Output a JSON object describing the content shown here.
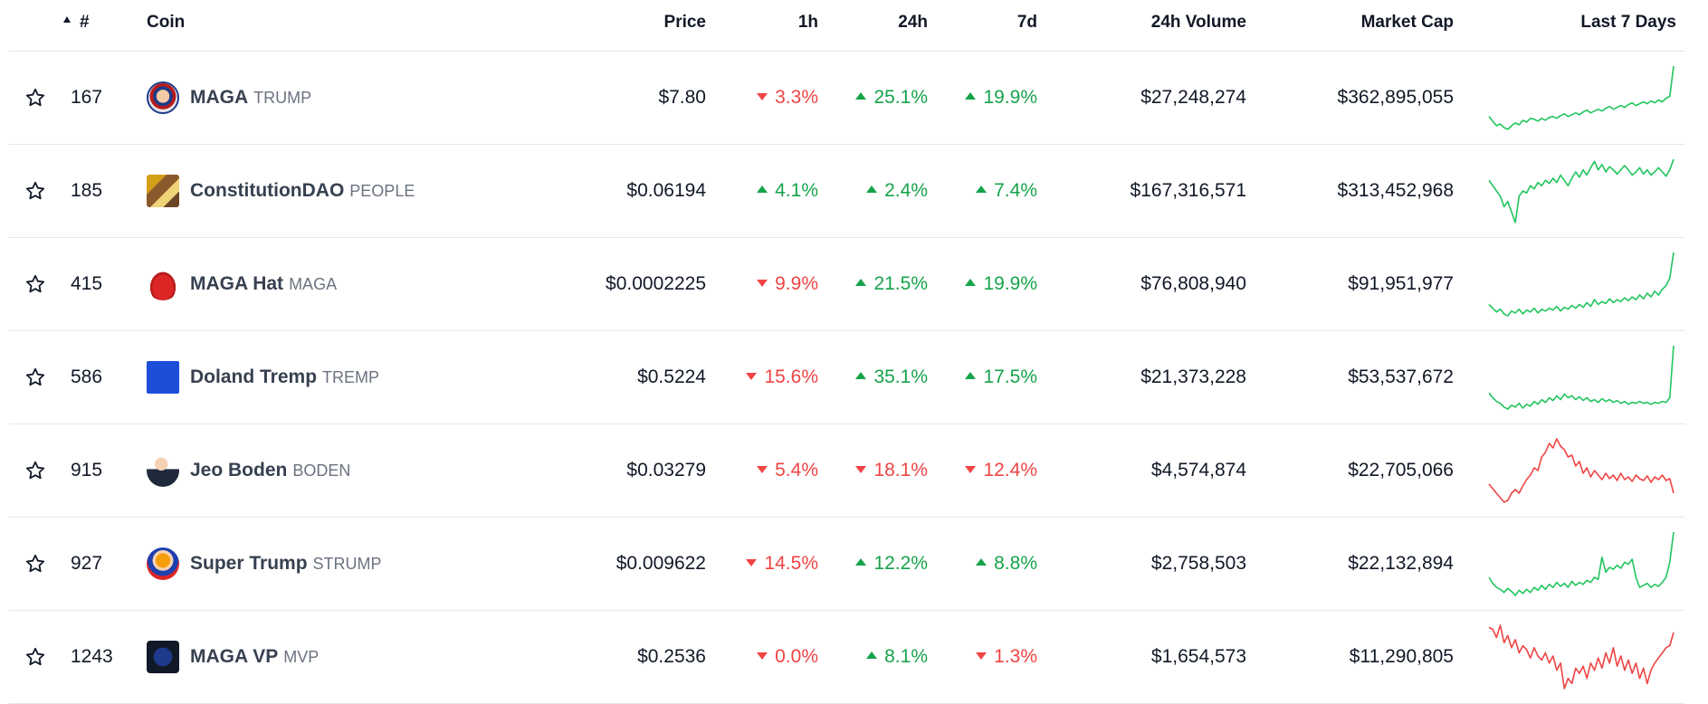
{
  "header": {
    "rank": "#",
    "coin": "Coin",
    "price": "Price",
    "h1": "1h",
    "h24": "24h",
    "d7": "7d",
    "volume": "24h Volume",
    "market_cap": "Market Cap",
    "last7": "Last 7 Days"
  },
  "rows": [
    {
      "rank": "167",
      "name": "MAGA",
      "symbol": "TRUMP",
      "price": "$7.80",
      "h1": "3.3%",
      "h1_dir": "down",
      "h24": "25.1%",
      "h24_dir": "up",
      "d7": "19.9%",
      "d7_dir": "up",
      "volume": "$27,248,274",
      "market_cap": "$362,895,055",
      "spark_dir": "up",
      "spark": [
        40,
        35,
        30,
        32,
        28,
        26,
        30,
        33,
        31,
        36,
        34,
        38,
        37,
        35,
        38,
        36,
        39,
        40,
        38,
        41,
        43,
        40,
        42,
        44,
        42,
        45,
        47,
        44,
        46,
        48,
        46,
        49,
        51,
        48,
        50,
        52,
        50,
        53,
        55,
        52,
        54,
        56,
        54,
        57,
        55,
        58,
        56,
        60,
        62,
        95
      ]
    },
    {
      "rank": "185",
      "name": "ConstitutionDAO",
      "symbol": "PEOPLE",
      "price": "$0.06194",
      "h1": "4.1%",
      "h1_dir": "up",
      "h24": "2.4%",
      "h24_dir": "up",
      "d7": "7.4%",
      "d7_dir": "up",
      "volume": "$167,316,571",
      "market_cap": "$313,452,968",
      "spark_dir": "up",
      "spark": [
        60,
        55,
        50,
        45,
        35,
        40,
        30,
        20,
        45,
        50,
        48,
        55,
        52,
        58,
        55,
        60,
        57,
        62,
        58,
        65,
        60,
        55,
        62,
        68,
        63,
        70,
        65,
        72,
        78,
        70,
        75,
        68,
        73,
        70,
        66,
        70,
        74,
        70,
        65,
        68,
        72,
        66,
        70,
        65,
        68,
        72,
        68,
        64,
        70,
        80
      ]
    },
    {
      "rank": "415",
      "name": "MAGA Hat",
      "symbol": "MAGA",
      "price": "$0.0002225",
      "h1": "9.9%",
      "h1_dir": "down",
      "h24": "21.5%",
      "h24_dir": "up",
      "d7": "19.9%",
      "d7_dir": "up",
      "volume": "$76,808,940",
      "market_cap": "$91,951,977",
      "spark_dir": "up",
      "spark": [
        40,
        36,
        32,
        35,
        30,
        28,
        33,
        31,
        35,
        30,
        34,
        32,
        36,
        31,
        35,
        33,
        36,
        34,
        38,
        33,
        37,
        35,
        39,
        36,
        40,
        37,
        42,
        38,
        45,
        40,
        43,
        41,
        46,
        42,
        45,
        43,
        47,
        44,
        48,
        45,
        50,
        46,
        52,
        48,
        54,
        50,
        56,
        60,
        68,
        95
      ]
    },
    {
      "rank": "586",
      "name": "Doland Tremp",
      "symbol": "TREMP",
      "price": "$0.5224",
      "h1": "15.6%",
      "h1_dir": "down",
      "h24": "35.1%",
      "h24_dir": "up",
      "d7": "17.5%",
      "d7_dir": "up",
      "volume": "$21,373,228",
      "market_cap": "$53,537,672",
      "spark_dir": "up",
      "spark": [
        45,
        40,
        36,
        34,
        30,
        28,
        32,
        30,
        34,
        29,
        33,
        31,
        36,
        33,
        38,
        35,
        40,
        37,
        42,
        38,
        44,
        40,
        42,
        38,
        41,
        37,
        40,
        36,
        38,
        35,
        39,
        36,
        38,
        35,
        37,
        34,
        36,
        33,
        35,
        34,
        36,
        34,
        35,
        33,
        35,
        34,
        36,
        35,
        40,
        95
      ]
    },
    {
      "rank": "915",
      "name": "Jeo Boden",
      "symbol": "BODEN",
      "price": "$0.03279",
      "h1": "5.4%",
      "h1_dir": "down",
      "h24": "18.1%",
      "h24_dir": "down",
      "d7": "12.4%",
      "d7_dir": "down",
      "volume": "$4,574,874",
      "market_cap": "$22,705,066",
      "spark_dir": "down",
      "spark": [
        40,
        35,
        30,
        25,
        20,
        22,
        30,
        34,
        30,
        38,
        45,
        50,
        58,
        55,
        70,
        75,
        85,
        80,
        90,
        82,
        78,
        70,
        72,
        60,
        65,
        52,
        58,
        48,
        55,
        50,
        45,
        52,
        46,
        50,
        44,
        52,
        45,
        48,
        43,
        50,
        46,
        44,
        49,
        42,
        48,
        45,
        50,
        44,
        46,
        30
      ]
    },
    {
      "rank": "927",
      "name": "Super Trump",
      "symbol": "STRUMP",
      "price": "$0.009622",
      "h1": "14.5%",
      "h1_dir": "down",
      "h24": "12.2%",
      "h24_dir": "up",
      "d7": "8.8%",
      "d7_dir": "up",
      "volume": "$2,758,503",
      "market_cap": "$22,132,894",
      "spark_dir": "up",
      "spark": [
        40,
        34,
        30,
        28,
        25,
        29,
        26,
        22,
        27,
        24,
        28,
        25,
        30,
        27,
        32,
        28,
        33,
        30,
        35,
        31,
        34,
        30,
        36,
        32,
        35,
        33,
        37,
        35,
        40,
        38,
        60,
        45,
        50,
        48,
        52,
        49,
        55,
        53,
        58,
        40,
        30,
        32,
        34,
        30,
        33,
        31,
        35,
        40,
        55,
        85
      ]
    },
    {
      "rank": "1243",
      "name": "MAGA VP",
      "symbol": "MVP",
      "price": "$0.2536",
      "h1": "0.0%",
      "h1_dir": "down",
      "h24": "8.1%",
      "h24_dir": "up",
      "d7": "1.3%",
      "d7_dir": "down",
      "volume": "$1,654,573",
      "market_cap": "$11,290,805",
      "spark_dir": "down",
      "spark": [
        80,
        78,
        70,
        82,
        65,
        72,
        60,
        68,
        55,
        62,
        58,
        50,
        60,
        52,
        48,
        55,
        45,
        52,
        38,
        45,
        20,
        30,
        25,
        40,
        35,
        42,
        30,
        45,
        38,
        50,
        40,
        55,
        45,
        60,
        42,
        52,
        38,
        48,
        35,
        45,
        30,
        40,
        25,
        38,
        45,
        50,
        55,
        60,
        62,
        75
      ]
    }
  ],
  "colors": {
    "up": "#16a34a",
    "down": "#ef4444",
    "spark_up": "#22c55e",
    "spark_down": "#ef4444"
  }
}
